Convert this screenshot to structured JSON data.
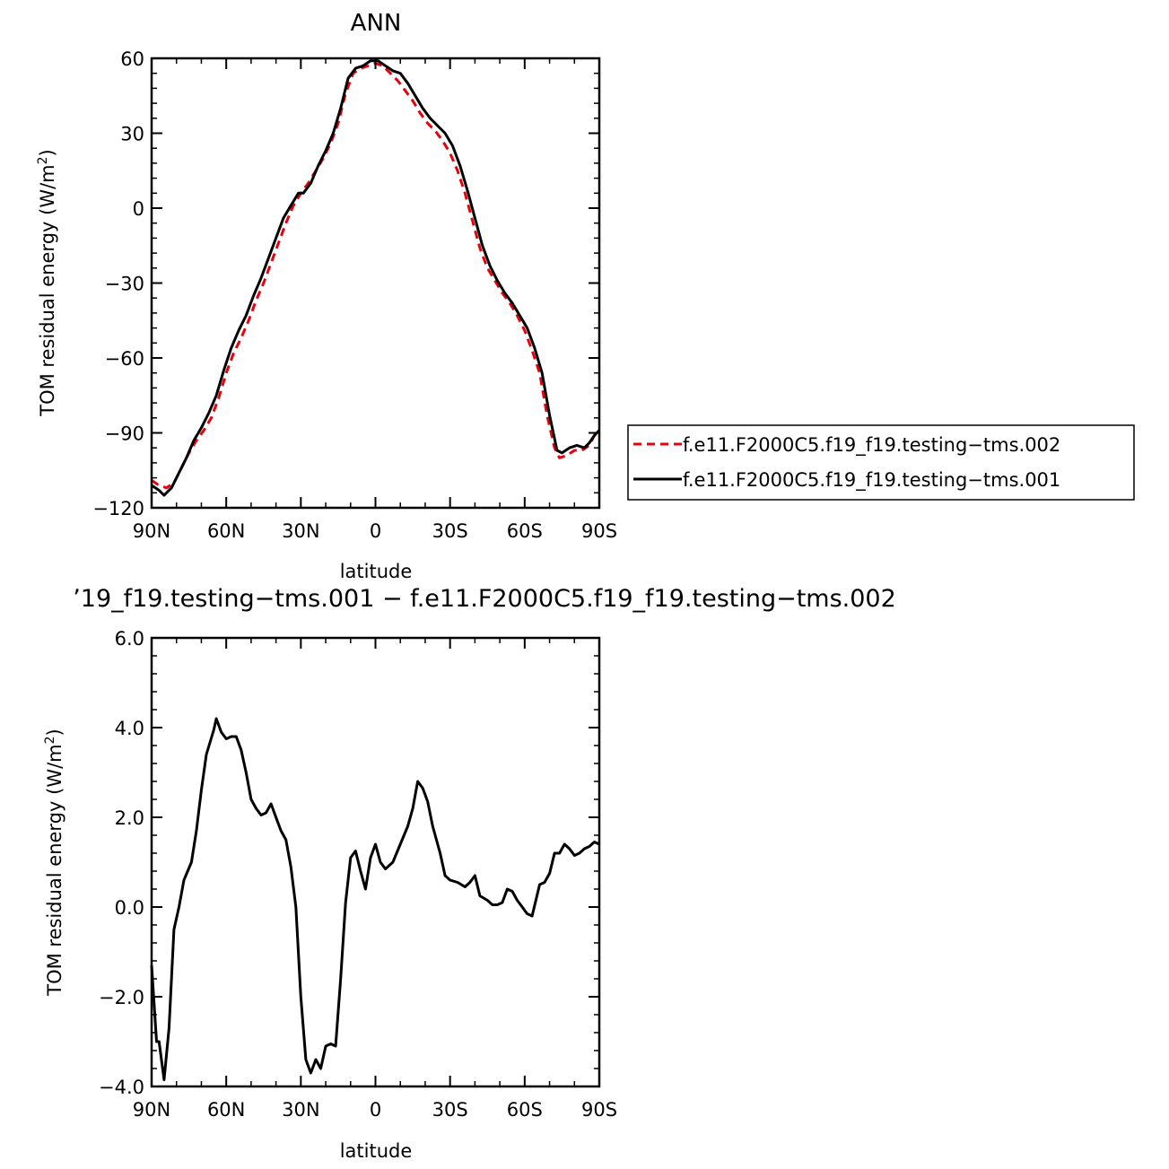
{
  "chart_data": [
    {
      "type": "line",
      "title": "ANN",
      "xlabel": "latitude",
      "ylabel": "TOM residual energy (W/m²)",
      "ylabel_main": "TOM residual energy (W/m",
      "ylabel_sup": "2",
      "ylabel_close": ")",
      "xlim": [
        90,
        -90
      ],
      "ylim": [
        -120,
        60
      ],
      "xticks": [
        {
          "value": 90,
          "label": "90N"
        },
        {
          "value": 60,
          "label": "60N"
        },
        {
          "value": 30,
          "label": "30N"
        },
        {
          "value": 0,
          "label": "0"
        },
        {
          "value": -30,
          "label": "30S"
        },
        {
          "value": -60,
          "label": "60S"
        },
        {
          "value": -90,
          "label": "90S"
        }
      ],
      "yticks": [
        {
          "value": 60,
          "label": "60"
        },
        {
          "value": 30,
          "label": "30"
        },
        {
          "value": 0,
          "label": "0"
        },
        {
          "value": -30,
          "label": "−30"
        },
        {
          "value": -60,
          "label": "−60"
        },
        {
          "value": -90,
          "label": "−90"
        },
        {
          "value": -120,
          "label": "−120"
        }
      ],
      "legend_position": "right",
      "series": [
        {
          "name": "f.e11.F2000C5.f19_f19.testing−tms.002",
          "color": "#e8000b",
          "dash": "dashed",
          "points": [
            [
              90,
              -109
            ],
            [
              87,
              -111
            ],
            [
              84,
              -112
            ],
            [
              81,
              -110
            ],
            [
              78,
              -104
            ],
            [
              75,
              -98
            ],
            [
              72,
              -93
            ],
            [
              69,
              -89
            ],
            [
              66,
              -84
            ],
            [
              63,
              -76
            ],
            [
              60,
              -66
            ],
            [
              57,
              -58
            ],
            [
              54,
              -52
            ],
            [
              51,
              -45
            ],
            [
              48,
              -37
            ],
            [
              45,
              -30
            ],
            [
              42,
              -22
            ],
            [
              39,
              -14
            ],
            [
              36,
              -6
            ],
            [
              33,
              1
            ],
            [
              30,
              6
            ],
            [
              27,
              10
            ],
            [
              24,
              15
            ],
            [
              21,
              20
            ],
            [
              18,
              26
            ],
            [
              15,
              34
            ],
            [
              12,
              46
            ],
            [
              9,
              54
            ],
            [
              6,
              56
            ],
            [
              3,
              57
            ],
            [
              0,
              58
            ],
            [
              -3,
              57
            ],
            [
              -6,
              54
            ],
            [
              -9,
              51
            ],
            [
              -12,
              47
            ],
            [
              -15,
              43
            ],
            [
              -18,
              38
            ],
            [
              -21,
              34
            ],
            [
              -24,
              31
            ],
            [
              -27,
              27
            ],
            [
              -30,
              22
            ],
            [
              -33,
              15
            ],
            [
              -36,
              6
            ],
            [
              -39,
              -5
            ],
            [
              -42,
              -16
            ],
            [
              -45,
              -24
            ],
            [
              -48,
              -29
            ],
            [
              -51,
              -34
            ],
            [
              -54,
              -38
            ],
            [
              -57,
              -43
            ],
            [
              -60,
              -49
            ],
            [
              -63,
              -57
            ],
            [
              -66,
              -66
            ],
            [
              -69,
              -83
            ],
            [
              -72,
              -96
            ],
            [
              -74,
              -100
            ],
            [
              -77,
              -99
            ],
            [
              -80,
              -97
            ],
            [
              -83,
              -97
            ],
            [
              -86,
              -95
            ],
            [
              -88,
              -91
            ],
            [
              -90,
              -90
            ]
          ]
        },
        {
          "name": "f.e11.F2000C5.f19_f19.testing−tms.001",
          "color": "#000000",
          "dash": "solid",
          "points": [
            [
              90,
              -111
            ],
            [
              87,
              -113
            ],
            [
              85,
              -115
            ],
            [
              82,
              -112
            ],
            [
              79,
              -106
            ],
            [
              76,
              -100
            ],
            [
              73,
              -93
            ],
            [
              70,
              -88
            ],
            [
              67,
              -82
            ],
            [
              64,
              -75
            ],
            [
              61,
              -65
            ],
            [
              58,
              -56
            ],
            [
              55,
              -49
            ],
            [
              52,
              -43
            ],
            [
              49,
              -35
            ],
            [
              46,
              -28
            ],
            [
              43,
              -20
            ],
            [
              40,
              -12
            ],
            [
              37,
              -4
            ],
            [
              34,
              1
            ],
            [
              31,
              6
            ],
            [
              29,
              6
            ],
            [
              26,
              10
            ],
            [
              23,
              17
            ],
            [
              20,
              23
            ],
            [
              17,
              30
            ],
            [
              14,
              40
            ],
            [
              11,
              52
            ],
            [
              8,
              56
            ],
            [
              5,
              57
            ],
            [
              2,
              59
            ],
            [
              -1,
              59
            ],
            [
              -4,
              57
            ],
            [
              -7,
              55
            ],
            [
              -10,
              54
            ],
            [
              -13,
              50
            ],
            [
              -16,
              45
            ],
            [
              -19,
              40
            ],
            [
              -22,
              36
            ],
            [
              -25,
              33
            ],
            [
              -28,
              30
            ],
            [
              -31,
              25
            ],
            [
              -34,
              17
            ],
            [
              -37,
              7
            ],
            [
              -40,
              -4
            ],
            [
              -43,
              -15
            ],
            [
              -46,
              -23
            ],
            [
              -49,
              -29
            ],
            [
              -52,
              -34
            ],
            [
              -55,
              -38
            ],
            [
              -58,
              -43
            ],
            [
              -61,
              -48
            ],
            [
              -64,
              -56
            ],
            [
              -67,
              -66
            ],
            [
              -70,
              -83
            ],
            [
              -73,
              -97
            ],
            [
              -75,
              -98
            ],
            [
              -78,
              -96
            ],
            [
              -81,
              -95
            ],
            [
              -84,
              -96
            ],
            [
              -86,
              -94
            ],
            [
              -88,
              -91
            ],
            [
              -90,
              -89
            ]
          ]
        }
      ]
    },
    {
      "type": "line",
      "title": "ʼ19_f19.testing−tms.001 − f.e11.F2000C5.f19_f19.testing−tms.002",
      "xlabel": "latitude",
      "ylabel": "TOM residual energy (W/m²)",
      "ylabel_main": "TOM residual energy (W/m",
      "ylabel_sup": "2",
      "ylabel_close": ")",
      "xlim": [
        90,
        -90
      ],
      "ylim": [
        -4.0,
        6.0
      ],
      "xticks": [
        {
          "value": 90,
          "label": "90N"
        },
        {
          "value": 60,
          "label": "60N"
        },
        {
          "value": 30,
          "label": "30N"
        },
        {
          "value": 0,
          "label": "0"
        },
        {
          "value": -30,
          "label": "30S"
        },
        {
          "value": -60,
          "label": "60S"
        },
        {
          "value": -90,
          "label": "90S"
        }
      ],
      "yticks": [
        {
          "value": 6.0,
          "label": "6.0"
        },
        {
          "value": 4.0,
          "label": "4.0"
        },
        {
          "value": 2.0,
          "label": "2.0"
        },
        {
          "value": 0.0,
          "label": "0.0"
        },
        {
          "value": -2.0,
          "label": "−2.0"
        },
        {
          "value": -4.0,
          "label": "−4.0"
        }
      ],
      "series": [
        {
          "color": "#000000",
          "dash": "solid",
          "points": [
            [
              90,
              -1.3
            ],
            [
              88,
              -3.0
            ],
            [
              87,
              -3.0
            ],
            [
              85,
              -3.85
            ],
            [
              83,
              -2.7
            ],
            [
              81,
              -0.5
            ],
            [
              79,
              0.0
            ],
            [
              77,
              0.6
            ],
            [
              74,
              1.0
            ],
            [
              72,
              1.7
            ],
            [
              70,
              2.6
            ],
            [
              68,
              3.4
            ],
            [
              65,
              3.95
            ],
            [
              64,
              4.2
            ],
            [
              62,
              3.9
            ],
            [
              60,
              3.75
            ],
            [
              58,
              3.8
            ],
            [
              56,
              3.8
            ],
            [
              54,
              3.5
            ],
            [
              52,
              3.0
            ],
            [
              50,
              2.4
            ],
            [
              48,
              2.2
            ],
            [
              46,
              2.05
            ],
            [
              44,
              2.1
            ],
            [
              42,
              2.3
            ],
            [
              40,
              2.0
            ],
            [
              38,
              1.7
            ],
            [
              36,
              1.5
            ],
            [
              34,
              0.9
            ],
            [
              32,
              0.0
            ],
            [
              30,
              -2.0
            ],
            [
              28,
              -3.4
            ],
            [
              26,
              -3.7
            ],
            [
              24,
              -3.4
            ],
            [
              22,
              -3.6
            ],
            [
              20,
              -3.1
            ],
            [
              18,
              -3.05
            ],
            [
              16,
              -3.1
            ],
            [
              14,
              -1.6
            ],
            [
              12,
              0.1
            ],
            [
              10,
              1.1
            ],
            [
              8,
              1.25
            ],
            [
              6,
              0.8
            ],
            [
              4,
              0.4
            ],
            [
              2,
              1.1
            ],
            [
              0,
              1.4
            ],
            [
              -2,
              1.0
            ],
            [
              -4,
              0.85
            ],
            [
              -7,
              1.0
            ],
            [
              -10,
              1.4
            ],
            [
              -13,
              1.8
            ],
            [
              -15,
              2.2
            ],
            [
              -17,
              2.8
            ],
            [
              -19,
              2.65
            ],
            [
              -21,
              2.35
            ],
            [
              -23,
              1.8
            ],
            [
              -26,
              1.2
            ],
            [
              -28,
              0.7
            ],
            [
              -30,
              0.6
            ],
            [
              -33,
              0.55
            ],
            [
              -36,
              0.45
            ],
            [
              -38,
              0.55
            ],
            [
              -40,
              0.7
            ],
            [
              -42,
              0.25
            ],
            [
              -45,
              0.15
            ],
            [
              -47,
              0.05
            ],
            [
              -49,
              0.05
            ],
            [
              -51,
              0.1
            ],
            [
              -53,
              0.4
            ],
            [
              -55,
              0.35
            ],
            [
              -57,
              0.15
            ],
            [
              -59,
              0.0
            ],
            [
              -61,
              -0.15
            ],
            [
              -63,
              -0.2
            ],
            [
              -66,
              0.5
            ],
            [
              -68,
              0.55
            ],
            [
              -70,
              0.75
            ],
            [
              -72,
              1.2
            ],
            [
              -74,
              1.2
            ],
            [
              -76,
              1.4
            ],
            [
              -78,
              1.3
            ],
            [
              -80,
              1.15
            ],
            [
              -82,
              1.2
            ],
            [
              -84,
              1.3
            ],
            [
              -86,
              1.35
            ],
            [
              -88,
              1.45
            ],
            [
              -90,
              1.4
            ]
          ]
        }
      ]
    }
  ]
}
